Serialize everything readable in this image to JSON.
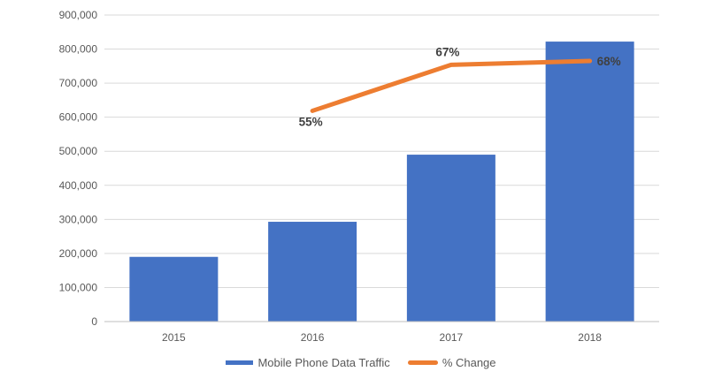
{
  "chart_data": {
    "type": "combo-bar-line",
    "categories": [
      "2015",
      "2016",
      "2017",
      "2018"
    ],
    "series": [
      {
        "name": "Mobile Phone Data Traffic",
        "type": "bar",
        "color": "#4472C4",
        "axis": "primary",
        "values": [
          190000,
          293000,
          490000,
          822000
        ]
      },
      {
        "name": "% Change",
        "type": "line",
        "color": "#ED7D31",
        "axis": "secondary",
        "values": [
          null,
          55,
          67,
          68
        ],
        "point_labels": [
          null,
          "55%",
          "67%",
          "68%"
        ]
      }
    ],
    "x_axis": {
      "tick_labels": [
        "2015",
        "2016",
        "2017",
        "2018"
      ]
    },
    "y_axis": {
      "min": 0,
      "max": 900000,
      "step": 100000,
      "tick_labels": [
        "0",
        "100,000",
        "200,000",
        "300,000",
        "400,000",
        "500,000",
        "600,000",
        "700,000",
        "800,000",
        "900,000"
      ]
    },
    "y2_axis": {
      "min": 0,
      "max": 80,
      "visible": false
    },
    "grid": true,
    "title": "",
    "legend": {
      "position": "bottom",
      "entries": [
        "Mobile Phone Data Traffic",
        "% Change"
      ]
    },
    "style_colors": {
      "grid_line": "#D9D9D9",
      "axis_line": "#BFBFBF",
      "tick_label_text": "#595959",
      "data_label_text": "#404040"
    }
  }
}
